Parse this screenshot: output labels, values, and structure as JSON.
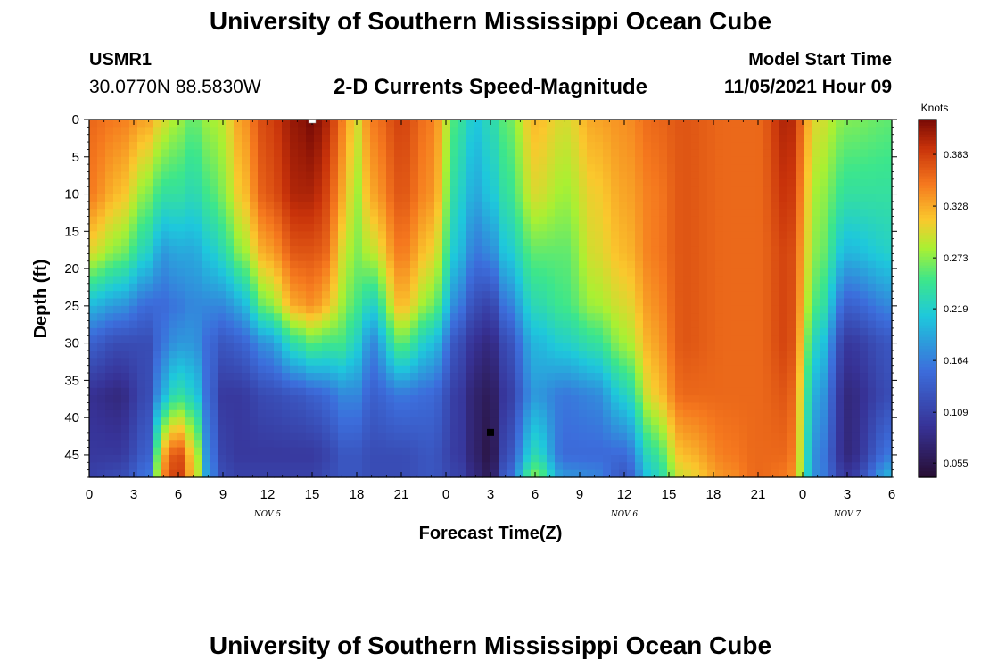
{
  "header": {
    "title": "University of Southern Mississippi Ocean Cube",
    "station_id": "USMR1",
    "coordinates": "30.0770N  88.5830W",
    "plot_title": "2-D Currents Speed-Magnitude",
    "start_label": "Model Start Time",
    "start_value": "11/05/2021 Hour 09"
  },
  "footer": {
    "title": "University of Southern Mississippi Ocean Cube"
  },
  "chart_data": {
    "type": "heatmap",
    "title": "2-D Currents Speed-Magnitude",
    "xlabel": "Forecast Time(Z)",
    "ylabel": "Depth (ft)",
    "colorbar_label": "Knots",
    "xlim_hours": [
      0,
      54
    ],
    "ylim_ft": [
      0,
      48
    ],
    "x_ticks": [
      {
        "h": 0,
        "label": "0"
      },
      {
        "h": 3,
        "label": "3"
      },
      {
        "h": 6,
        "label": "6"
      },
      {
        "h": 9,
        "label": "9"
      },
      {
        "h": 12,
        "label": "12"
      },
      {
        "h": 15,
        "label": "15"
      },
      {
        "h": 18,
        "label": "18"
      },
      {
        "h": 21,
        "label": "21"
      },
      {
        "h": 24,
        "label": "0"
      },
      {
        "h": 27,
        "label": "3"
      },
      {
        "h": 30,
        "label": "6"
      },
      {
        "h": 33,
        "label": "9"
      },
      {
        "h": 36,
        "label": "12"
      },
      {
        "h": 39,
        "label": "15"
      },
      {
        "h": 42,
        "label": "18"
      },
      {
        "h": 45,
        "label": "21"
      },
      {
        "h": 48,
        "label": "0"
      },
      {
        "h": 51,
        "label": "3"
      },
      {
        "h": 54,
        "label": "6"
      }
    ],
    "date_labels": [
      {
        "h": 12,
        "label": "NOV 5"
      },
      {
        "h": 36,
        "label": "NOV 6"
      },
      {
        "h": 51,
        "label": "NOV 7"
      }
    ],
    "y_ticks": [
      0,
      5,
      10,
      15,
      20,
      25,
      30,
      35,
      40,
      45
    ],
    "colorbar_ticks": [
      "0.055",
      "0.109",
      "0.164",
      "0.219",
      "0.273",
      "0.328",
      "0.383"
    ],
    "colorbar_range": [
      0.04,
      0.42
    ],
    "markers": [
      {
        "name": "white-marker",
        "h": 15,
        "depth": 0,
        "color": "#ffffff"
      },
      {
        "name": "black-marker",
        "h": 27,
        "depth": 42,
        "color": "#000000"
      }
    ],
    "speed_profiles": [
      {
        "h": 0,
        "d": [
          0,
          10,
          18,
          25,
          30,
          37,
          45,
          48
        ],
        "v": [
          0.36,
          0.35,
          0.3,
          0.2,
          0.14,
          0.09,
          0.1,
          0.11
        ]
      },
      {
        "h": 2,
        "d": [
          0,
          10,
          18,
          25,
          30,
          37,
          45,
          48
        ],
        "v": [
          0.35,
          0.32,
          0.27,
          0.18,
          0.12,
          0.08,
          0.1,
          0.12
        ]
      },
      {
        "h": 4,
        "d": [
          0,
          10,
          18,
          25,
          30,
          37,
          45,
          48
        ],
        "v": [
          0.33,
          0.27,
          0.22,
          0.15,
          0.12,
          0.12,
          0.14,
          0.16
        ]
      },
      {
        "h": 5,
        "d": [
          0,
          10,
          18,
          25,
          30,
          37,
          41,
          45,
          48
        ],
        "v": [
          0.3,
          0.24,
          0.18,
          0.15,
          0.16,
          0.2,
          0.27,
          0.33,
          0.35
        ]
      },
      {
        "h": 6,
        "d": [
          0,
          10,
          18,
          25,
          30,
          37,
          41,
          45,
          48
        ],
        "v": [
          0.28,
          0.24,
          0.19,
          0.16,
          0.18,
          0.24,
          0.31,
          0.38,
          0.39
        ]
      },
      {
        "h": 7,
        "d": [
          0,
          10,
          18,
          25,
          30,
          37,
          41,
          45,
          48
        ],
        "v": [
          0.26,
          0.23,
          0.19,
          0.17,
          0.18,
          0.22,
          0.27,
          0.31,
          0.32
        ]
      },
      {
        "h": 8,
        "d": [
          0,
          10,
          18,
          25,
          30,
          37,
          45,
          48
        ],
        "v": [
          0.28,
          0.25,
          0.21,
          0.17,
          0.15,
          0.15,
          0.17,
          0.18
        ]
      },
      {
        "h": 9,
        "d": [
          0,
          10,
          18,
          25,
          30,
          37,
          45,
          48
        ],
        "v": [
          0.29,
          0.27,
          0.23,
          0.17,
          0.13,
          0.1,
          0.11,
          0.12
        ]
      },
      {
        "h": 10,
        "d": [
          0,
          10,
          18,
          25,
          30,
          37,
          45,
          48
        ],
        "v": [
          0.33,
          0.31,
          0.27,
          0.19,
          0.14,
          0.1,
          0.1,
          0.11
        ]
      },
      {
        "h": 12,
        "d": [
          0,
          10,
          18,
          25,
          30,
          37,
          45,
          48
        ],
        "v": [
          0.38,
          0.37,
          0.33,
          0.27,
          0.18,
          0.12,
          0.1,
          0.11
        ]
      },
      {
        "h": 14,
        "d": [
          0,
          10,
          18,
          25,
          30,
          37,
          45,
          48
        ],
        "v": [
          0.41,
          0.4,
          0.37,
          0.33,
          0.24,
          0.13,
          0.1,
          0.11
        ]
      },
      {
        "h": 15,
        "d": [
          0,
          10,
          18,
          25,
          30,
          37,
          45,
          48
        ],
        "v": [
          0.42,
          0.4,
          0.37,
          0.34,
          0.26,
          0.14,
          0.1,
          0.11
        ]
      },
      {
        "h": 16,
        "d": [
          0,
          10,
          18,
          25,
          30,
          37,
          45,
          48
        ],
        "v": [
          0.4,
          0.38,
          0.36,
          0.32,
          0.25,
          0.15,
          0.11,
          0.12
        ]
      },
      {
        "h": 17,
        "d": [
          0,
          10,
          18,
          25,
          30,
          37,
          45,
          48
        ],
        "v": [
          0.35,
          0.33,
          0.3,
          0.28,
          0.25,
          0.17,
          0.13,
          0.13
        ]
      },
      {
        "h": 18,
        "d": [
          0,
          10,
          18,
          25,
          30,
          37,
          45,
          48
        ],
        "v": [
          0.3,
          0.28,
          0.27,
          0.25,
          0.22,
          0.17,
          0.13,
          0.13
        ]
      },
      {
        "h": 19,
        "d": [
          0,
          10,
          18,
          25,
          30,
          37,
          45,
          48
        ],
        "v": [
          0.35,
          0.33,
          0.29,
          0.22,
          0.17,
          0.14,
          0.12,
          0.12
        ]
      },
      {
        "h": 21,
        "d": [
          0,
          10,
          18,
          25,
          30,
          37,
          45,
          48
        ],
        "v": [
          0.38,
          0.37,
          0.35,
          0.32,
          0.26,
          0.16,
          0.12,
          0.12
        ]
      },
      {
        "h": 23,
        "d": [
          0,
          10,
          18,
          25,
          30,
          37,
          45,
          48
        ],
        "v": [
          0.35,
          0.34,
          0.31,
          0.27,
          0.21,
          0.15,
          0.13,
          0.13
        ]
      },
      {
        "h": 25,
        "d": [
          0,
          10,
          18,
          25,
          30,
          37,
          45,
          48
        ],
        "v": [
          0.24,
          0.22,
          0.2,
          0.16,
          0.12,
          0.1,
          0.1,
          0.11
        ]
      },
      {
        "h": 26,
        "d": [
          0,
          10,
          18,
          25,
          30,
          37,
          45,
          48
        ],
        "v": [
          0.21,
          0.19,
          0.16,
          0.12,
          0.09,
          0.07,
          0.07,
          0.08
        ]
      },
      {
        "h": 27,
        "d": [
          0,
          10,
          18,
          25,
          30,
          37,
          45,
          48
        ],
        "v": [
          0.23,
          0.21,
          0.17,
          0.11,
          0.08,
          0.06,
          0.05,
          0.06
        ]
      },
      {
        "h": 28,
        "d": [
          0,
          10,
          18,
          25,
          30,
          37,
          45,
          48
        ],
        "v": [
          0.26,
          0.24,
          0.21,
          0.16,
          0.12,
          0.1,
          0.12,
          0.14
        ]
      },
      {
        "h": 30,
        "d": [
          0,
          10,
          18,
          25,
          30,
          37,
          45,
          48
        ],
        "v": [
          0.32,
          0.3,
          0.26,
          0.23,
          0.2,
          0.18,
          0.23,
          0.27
        ]
      },
      {
        "h": 32,
        "d": [
          0,
          10,
          18,
          25,
          30,
          37,
          45,
          48
        ],
        "v": [
          0.3,
          0.28,
          0.26,
          0.25,
          0.22,
          0.16,
          0.15,
          0.18
        ]
      },
      {
        "h": 34,
        "d": [
          0,
          10,
          18,
          25,
          30,
          37,
          45,
          48
        ],
        "v": [
          0.33,
          0.31,
          0.3,
          0.28,
          0.24,
          0.17,
          0.15,
          0.17
        ]
      },
      {
        "h": 36,
        "d": [
          0,
          10,
          18,
          25,
          30,
          37,
          45,
          48
        ],
        "v": [
          0.34,
          0.33,
          0.32,
          0.3,
          0.28,
          0.22,
          0.15,
          0.13
        ]
      },
      {
        "h": 38,
        "d": [
          0,
          10,
          18,
          25,
          30,
          37,
          45,
          48
        ],
        "v": [
          0.36,
          0.35,
          0.35,
          0.34,
          0.33,
          0.31,
          0.24,
          0.22
        ]
      },
      {
        "h": 40,
        "d": [
          0,
          10,
          18,
          25,
          30,
          37,
          45,
          48
        ],
        "v": [
          0.37,
          0.37,
          0.37,
          0.37,
          0.37,
          0.36,
          0.32,
          0.3
        ]
      },
      {
        "h": 43,
        "d": [
          0,
          10,
          18,
          25,
          30,
          37,
          45,
          48
        ],
        "v": [
          0.36,
          0.36,
          0.36,
          0.36,
          0.36,
          0.36,
          0.35,
          0.34
        ]
      },
      {
        "h": 45,
        "d": [
          0,
          10,
          18,
          25,
          30,
          37,
          45,
          48
        ],
        "v": [
          0.36,
          0.36,
          0.36,
          0.36,
          0.36,
          0.36,
          0.36,
          0.36
        ]
      },
      {
        "h": 47,
        "d": [
          0,
          10,
          18,
          25,
          30,
          37,
          45,
          48
        ],
        "v": [
          0.4,
          0.39,
          0.38,
          0.38,
          0.38,
          0.37,
          0.36,
          0.35
        ]
      },
      {
        "h": 49,
        "d": [
          0,
          10,
          18,
          25,
          30,
          37,
          45,
          48
        ],
        "v": [
          0.3,
          0.28,
          0.27,
          0.25,
          0.22,
          0.19,
          0.17,
          0.17
        ]
      },
      {
        "h": 51,
        "d": [
          0,
          10,
          18,
          25,
          30,
          37,
          45,
          48
        ],
        "v": [
          0.27,
          0.24,
          0.2,
          0.14,
          0.1,
          0.08,
          0.08,
          0.1
        ]
      },
      {
        "h": 54,
        "d": [
          0,
          10,
          18,
          25,
          30,
          37,
          45,
          48
        ],
        "v": [
          0.26,
          0.24,
          0.22,
          0.17,
          0.13,
          0.12,
          0.16,
          0.2
        ]
      }
    ]
  }
}
